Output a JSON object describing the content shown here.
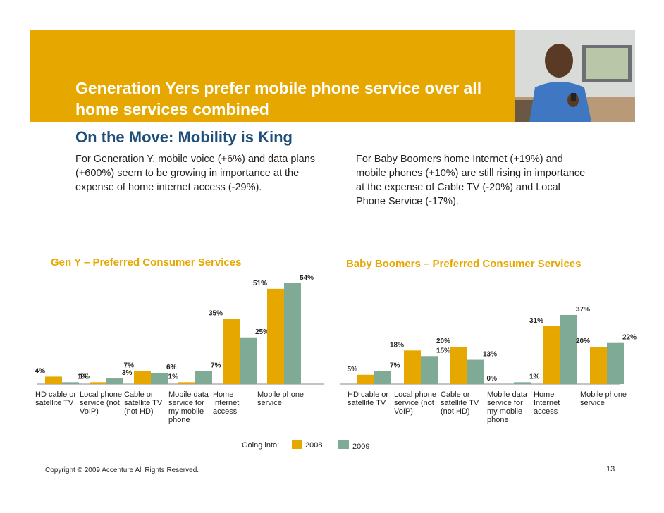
{
  "header": {
    "title": "Generation Yers prefer mobile phone service over all home services combined",
    "subtitle": "On the Move: Mobility is King",
    "paragraph_left": "For Generation Y, mobile voice (+6%) and data plans (+600%) seem to be growing in importance at the expense of home internet access (-29%).",
    "paragraph_right": "For Baby Boomers home Internet (+19%) and mobile phones (+10%) are still rising in importance at the expense of Cable TV (-20%) and Local Phone Service (-17%)."
  },
  "colors": {
    "banner": "#e6a800",
    "series_2008": "#e6a800",
    "series_2009": "#7fab96",
    "subtitle": "#1f4e79"
  },
  "legend": {
    "prefix": "Going into:",
    "items": [
      "2008",
      "2009"
    ]
  },
  "footer": {
    "copyright": "Copyright © 2009 Accenture  All Rights Reserved.",
    "page": "13"
  },
  "chart_data": [
    {
      "type": "bar",
      "title": "Gen Y – Preferred Consumer Services",
      "categories": [
        "HD cable or satellite TV",
        "Local phone service (not VoIP)",
        "Cable or satellite TV (not HD)",
        "Mobile data service for my mobile phone",
        "Home Internet access",
        "Mobile phone service"
      ],
      "series": [
        {
          "name": "2008",
          "values": [
            4,
            1,
            7,
            1,
            35,
            51
          ]
        },
        {
          "name": "2009",
          "values": [
            1,
            3,
            6,
            7,
            25,
            54
          ]
        }
      ]
    },
    {
      "type": "bar",
      "title": "Baby Boomers – Preferred Consumer Services",
      "categories": [
        "HD cable or satellite TV",
        "Local phone service (not VoIP)",
        "Cable or satellite TV (not HD)",
        "Mobile data service for my mobile phone",
        "Home Internet access",
        "Mobile phone service"
      ],
      "series": [
        {
          "name": "2008",
          "values": [
            5,
            18,
            20,
            0,
            31,
            20
          ]
        },
        {
          "name": "2009",
          "values": [
            7,
            15,
            13,
            1,
            37,
            22
          ]
        }
      ]
    }
  ]
}
